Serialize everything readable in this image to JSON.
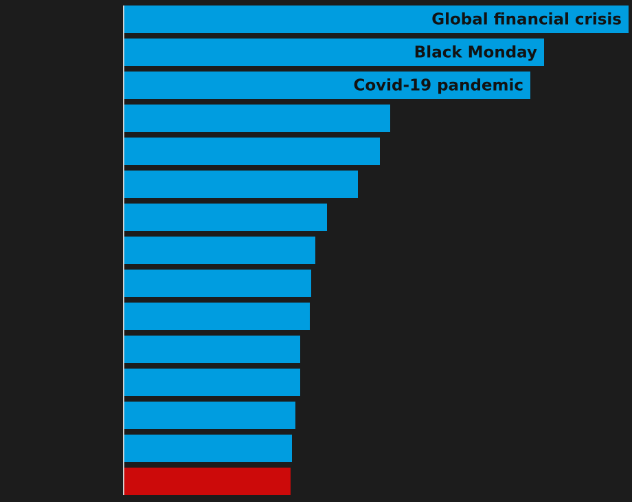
{
  "chart_data": {
    "type": "hbar",
    "categories": [
      "Global financial crisis",
      "Black Monday",
      "Covid-19 pandemic",
      null,
      null,
      null,
      null,
      null,
      null,
      null,
      null,
      null,
      null,
      null,
      null
    ],
    "values": [
      734,
      611,
      591,
      387,
      372,
      340,
      295,
      278,
      272,
      270,
      256,
      256,
      249,
      244,
      242
    ],
    "colors": [
      "#009de0",
      "#009de0",
      "#009de0",
      "#009de0",
      "#009de0",
      "#009de0",
      "#009de0",
      "#009de0",
      "#009de0",
      "#009de0",
      "#009de0",
      "#009de0",
      "#009de0",
      "#009de0",
      "#cc0a0a"
    ],
    "xlim": [
      0,
      734
    ]
  }
}
